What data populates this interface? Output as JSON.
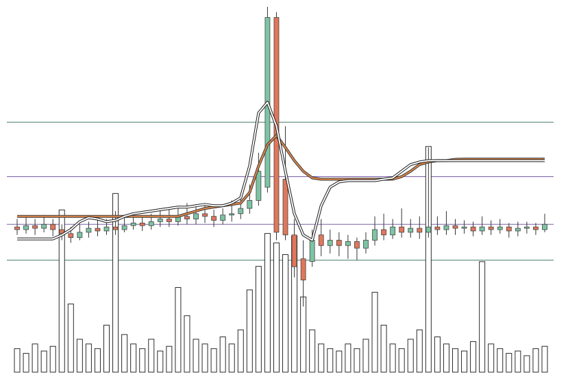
{
  "chart_data": {
    "type": "candlestick",
    "open": [
      17,
      16,
      17.5,
      16.5,
      18,
      16,
      14.5,
      13,
      15,
      16.5,
      15.5,
      17,
      16,
      17.5,
      18.5,
      17.5,
      19,
      20,
      19,
      21,
      20,
      22,
      21,
      19.5,
      21.5,
      22,
      24,
      27,
      32,
      96,
      35,
      14,
      5,
      4,
      14,
      10,
      12,
      10,
      11.5,
      9,
      12,
      16,
      14,
      17,
      15,
      16.5,
      15,
      17,
      16,
      17.5,
      16.5,
      17,
      15.5,
      17,
      16,
      17,
      15.5,
      16.5,
      17,
      16
    ],
    "high": [
      20,
      21,
      20,
      21.5,
      20,
      18,
      17,
      18,
      19,
      19.5,
      20,
      23,
      20.5,
      22,
      21,
      22,
      24,
      23.5,
      25,
      26,
      25.5,
      25,
      23.5,
      24,
      27,
      28,
      33,
      45,
      100,
      98,
      55,
      20,
      12,
      16,
      20,
      16,
      15,
      14,
      13,
      15,
      21,
      22,
      20,
      24,
      20,
      21,
      47,
      21,
      23,
      20,
      19.5,
      19,
      21,
      19.5,
      20,
      18.5,
      19,
      19,
      18.5,
      22
    ],
    "low": [
      14,
      14.5,
      14,
      15,
      13.5,
      12,
      11,
      12,
      13,
      13.5,
      14,
      14,
      15,
      16,
      15.5,
      16,
      17,
      17,
      17.5,
      18,
      18,
      18.5,
      17,
      18,
      19,
      20,
      22,
      25,
      30,
      12,
      12,
      -2,
      -13,
      2,
      6,
      7,
      6,
      5,
      4.5,
      7,
      10,
      12,
      12.5,
      13,
      13,
      12.5,
      13,
      14,
      14,
      14,
      14.5,
      13.5,
      14,
      14,
      14.5,
      13,
      13.5,
      14.5,
      14,
      15
    ],
    "close": [
      16,
      17.5,
      16.5,
      18,
      16,
      14.5,
      13,
      15,
      16.5,
      15.5,
      17,
      16,
      17.5,
      18.5,
      17.5,
      19,
      20,
      19,
      21,
      20,
      22,
      21,
      19.5,
      21.5,
      22,
      24,
      27,
      38,
      96,
      15,
      14,
      2,
      -3,
      12,
      10,
      12,
      10,
      11.5,
      9,
      12,
      16,
      14,
      17,
      15,
      16.5,
      15,
      17,
      16,
      17.5,
      16.5,
      17,
      15.5,
      17,
      16,
      17,
      15.5,
      16.5,
      17,
      16,
      18
    ],
    "volume": [
      10,
      8,
      12,
      9,
      11,
      69,
      29,
      14,
      12,
      10,
      20,
      76,
      16,
      12,
      10,
      14,
      9,
      11,
      36,
      24,
      14,
      12,
      10,
      15,
      12,
      18,
      35,
      45,
      59,
      55,
      50,
      58,
      32,
      18,
      12,
      10,
      9,
      12,
      10,
      14,
      34,
      20,
      12,
      10,
      14,
      18,
      96,
      15,
      12,
      10,
      9,
      13,
      47,
      12,
      10,
      8,
      9,
      7,
      10,
      11
    ],
    "up_color": "#7cc4a4",
    "down_color": "#e0765a",
    "lines": [
      {
        "color": "#e0874a",
        "outline": "#3a3a3a",
        "values": [
          21,
          21,
          21,
          21,
          21,
          21,
          21,
          21,
          21,
          21,
          21,
          21,
          21,
          21,
          21,
          21,
          21,
          21,
          21,
          22,
          23,
          24,
          24.5,
          25,
          25.5,
          26,
          30,
          40,
          48,
          51.5,
          47,
          42,
          38,
          35.5,
          35,
          35,
          35,
          35,
          35,
          35,
          35,
          35,
          35,
          36,
          38,
          40.5,
          41.5,
          42,
          42,
          42.5,
          42.6,
          42.6,
          42.6,
          42.6,
          42.6,
          42.6,
          42.6,
          42.6,
          42.6,
          42.6
        ]
      },
      {
        "color": "#ffffff",
        "outline": "#1a1a1a",
        "values": [
          12.5,
          12.5,
          12.5,
          12.5,
          12.5,
          14,
          16,
          19,
          20.5,
          20,
          19,
          19.5,
          21,
          22,
          22.5,
          23,
          23.5,
          24,
          24.5,
          24.5,
          25,
          25.5,
          25,
          25,
          26,
          28,
          40,
          60,
          64,
          55,
          38,
          22,
          14,
          12,
          25,
          32,
          34,
          34.5,
          34.5,
          34.5,
          34.5,
          35,
          35.5,
          38,
          40.5,
          41.5,
          42,
          42,
          42,
          42,
          42,
          42,
          42,
          42,
          42,
          42,
          42,
          42,
          42,
          42
        ]
      }
    ],
    "reference_lines": [
      {
        "value": 56.5,
        "color": "#5a8a78"
      },
      {
        "value": 36,
        "color": "#8a72b0"
      },
      {
        "value": 18,
        "color": "#8a72b0"
      },
      {
        "value": 4.5,
        "color": "#5a8a78"
      }
    ],
    "ylim": [
      -15,
      100
    ],
    "y2lim": [
      0,
      100
    ]
  }
}
